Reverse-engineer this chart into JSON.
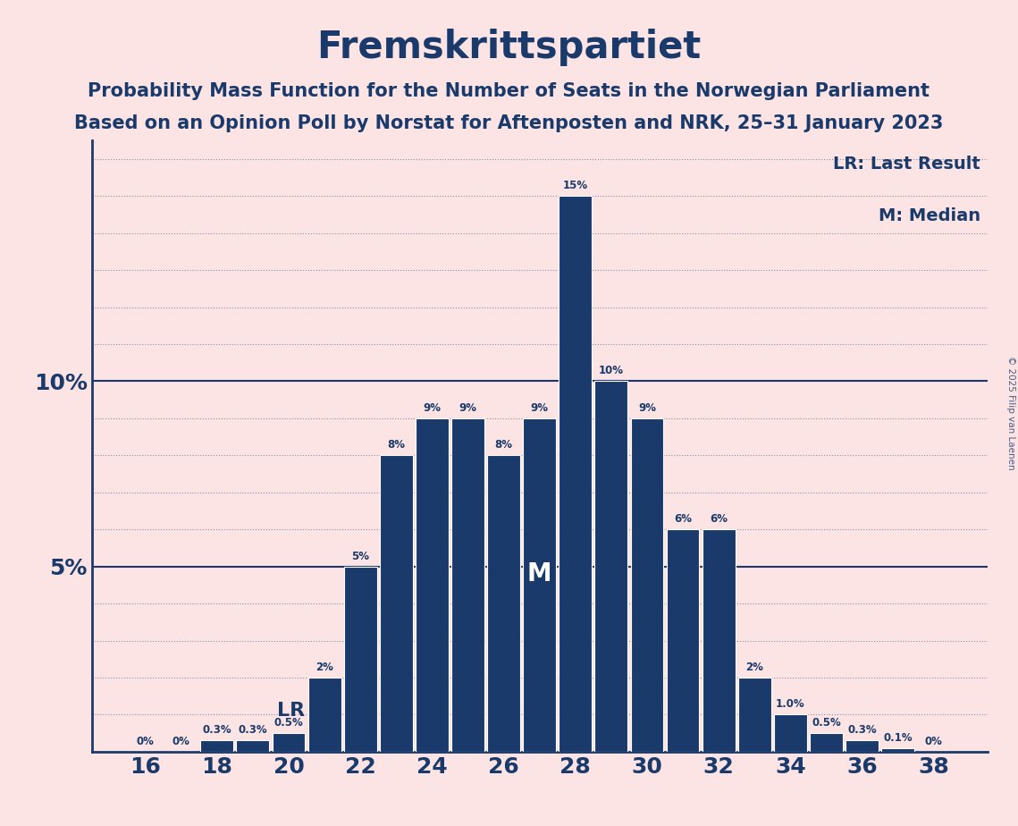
{
  "title": "Fremskrittspartiet",
  "subtitle1": "Probability Mass Function for the Number of Seats in the Norwegian Parliament",
  "subtitle2": "Based on an Opinion Poll by Norstat for Aftenposten and NRK, 25–31 January 2023",
  "copyright": "© 2025 Filip van Laenen",
  "seats": [
    16,
    17,
    18,
    19,
    20,
    21,
    22,
    23,
    24,
    25,
    26,
    27,
    28,
    29,
    30,
    31,
    32,
    33,
    34,
    35,
    36,
    37,
    38
  ],
  "probabilities": [
    0.0,
    0.0,
    0.3,
    0.3,
    0.5,
    2.0,
    5.0,
    8.0,
    9.0,
    9.0,
    8.0,
    9.0,
    15.0,
    10.0,
    9.0,
    6.0,
    6.0,
    2.0,
    1.0,
    0.5,
    0.3,
    0.1,
    0.0
  ],
  "bar_color": "#1a3a6b",
  "background_color": "#fce4e4",
  "text_color": "#1a3a6b",
  "lr_seat": 21,
  "median_seat": 27,
  "yticks": [
    0,
    5,
    10,
    15
  ],
  "ylim": [
    0,
    16.5
  ],
  "legend_lr": "LR: Last Result",
  "legend_m": "M: Median",
  "lr_label": "LR",
  "m_label": "M",
  "xlabel_seats": [
    16,
    18,
    20,
    22,
    24,
    26,
    28,
    30,
    32,
    34,
    36,
    38
  ],
  "bar_labels": [
    "0%",
    "0%",
    "0.3%",
    "0.3%",
    "0.5%",
    "2%",
    "5%",
    "8%",
    "9%",
    "9%",
    "8%",
    "9%",
    "15%",
    "10%",
    "9%",
    "6%",
    "6%",
    "2%",
    "1.0%",
    "0.5%",
    "0.3%",
    "0.1%",
    "0%"
  ]
}
